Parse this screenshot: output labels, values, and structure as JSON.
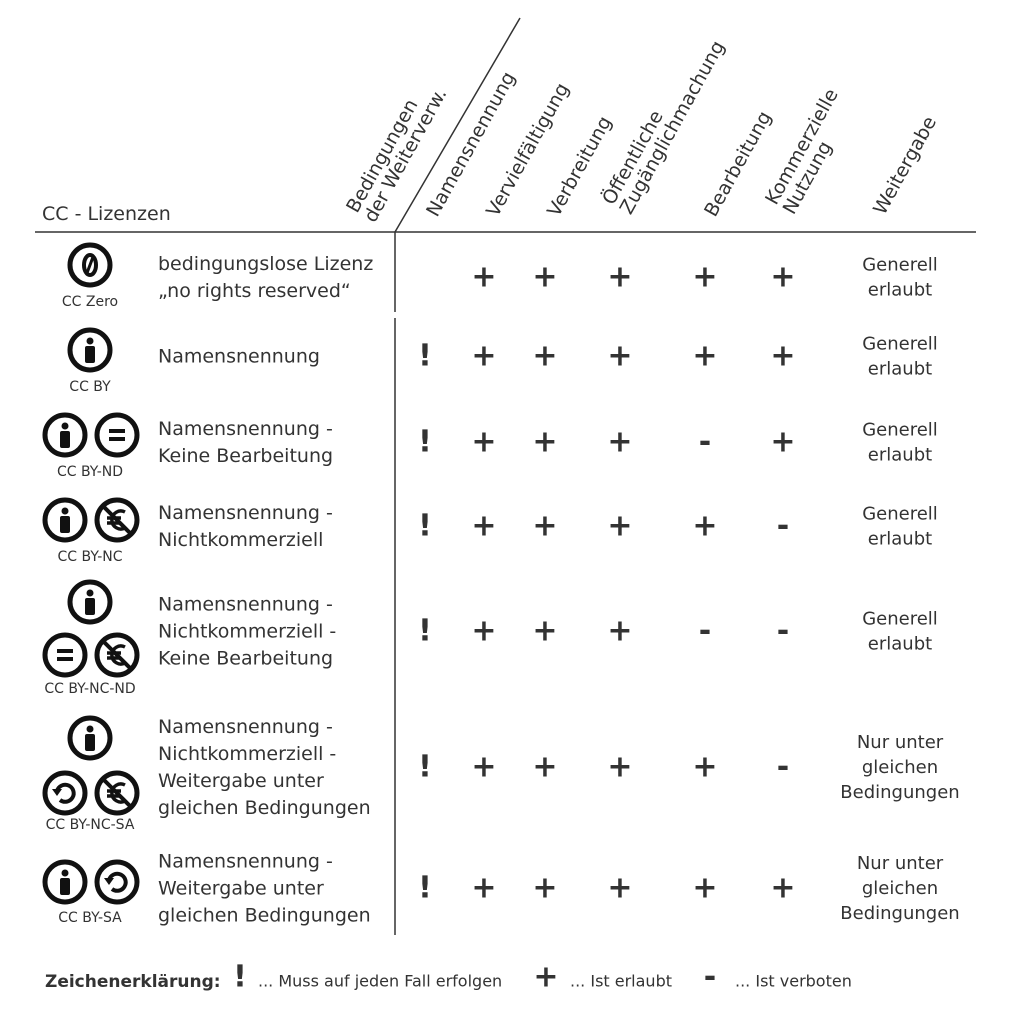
{
  "header": {
    "title": "CC - Lizenzen",
    "conditions": [
      "Bedingungen",
      "der Weiterverw."
    ],
    "columns": [
      [
        "Namensnennung"
      ],
      [
        "Vervielfältigung"
      ],
      [
        "Verbreitung"
      ],
      [
        "Öffentliche",
        "Zugänglichmachung"
      ],
      [
        "Bearbeitung"
      ],
      [
        "Kommerzielle",
        "Nutzung"
      ],
      [
        "Weitergabe"
      ]
    ]
  },
  "rows": [
    {
      "icon_label": "CC Zero",
      "description": [
        "bedingungslose Lizenz",
        "„no rights reserved“"
      ],
      "cells": [
        null,
        "+",
        "+",
        "+",
        "+",
        "+"
      ],
      "sharing": [
        "Generell",
        "erlaubt"
      ],
      "sharing_color": "#7aab22"
    },
    {
      "icon_label": "CC BY",
      "description": [
        "Namensnennung"
      ],
      "cells": [
        "!",
        "+",
        "+",
        "+",
        "+",
        "+"
      ],
      "sharing": [
        "Generell",
        "erlaubt"
      ],
      "sharing_color": "#7aab22"
    },
    {
      "icon_label": "CC BY-ND",
      "description": [
        "Namensnennung -",
        "Keine Bearbeitung"
      ],
      "cells": [
        "!",
        "+",
        "+",
        "+",
        "-",
        "+"
      ],
      "sharing": [
        "Generell",
        "erlaubt"
      ],
      "sharing_color": "#7aab22"
    },
    {
      "icon_label": "CC BY-NC",
      "description": [
        "Namensnennung -",
        "Nichtkommerziell"
      ],
      "cells": [
        "!",
        "+",
        "+",
        "+",
        "+",
        "-"
      ],
      "sharing": [
        "Generell",
        "erlaubt"
      ],
      "sharing_color": "#7aab22"
    },
    {
      "icon_label": "CC BY-NC-ND",
      "description": [
        "Namensnennung -",
        "Nichtkommerziell -",
        "Keine Bearbeitung"
      ],
      "cells": [
        "!",
        "+",
        "+",
        "+",
        "-",
        "-"
      ],
      "sharing": [
        "Generell",
        "erlaubt"
      ],
      "sharing_color": "#7aab22"
    },
    {
      "icon_label": "CC BY-NC-SA",
      "description": [
        "Namensnennung -",
        "Nichtkommerziell -",
        "Weitergabe unter",
        "gleichen Bedingungen"
      ],
      "cells": [
        "!",
        "+",
        "+",
        "+",
        "+",
        "-"
      ],
      "sharing": [
        "Nur unter",
        "gleichen",
        "Bedingungen"
      ],
      "sharing_color": "#e2001a"
    },
    {
      "icon_label": "CC BY-SA",
      "description": [
        "Namensnennung -",
        "Weitergabe unter",
        "gleichen Bedingungen"
      ],
      "cells": [
        "!",
        "+",
        "+",
        "+",
        "+",
        "+"
      ],
      "sharing": [
        "Nur unter",
        "gleichen",
        "Bedingungen"
      ],
      "sharing_color": "#e2001a"
    }
  ],
  "legend": {
    "title": "Zeichenerklärung:",
    "items": [
      {
        "symbol": "!",
        "text": "... Muss auf jeden Fall erfolgen",
        "color": "#e2001a"
      },
      {
        "symbol": "+",
        "text": "... Ist erlaubt",
        "color": "#7aab22"
      },
      {
        "symbol": "-",
        "text": "... Ist verboten",
        "color": "#e2001a"
      }
    ]
  }
}
